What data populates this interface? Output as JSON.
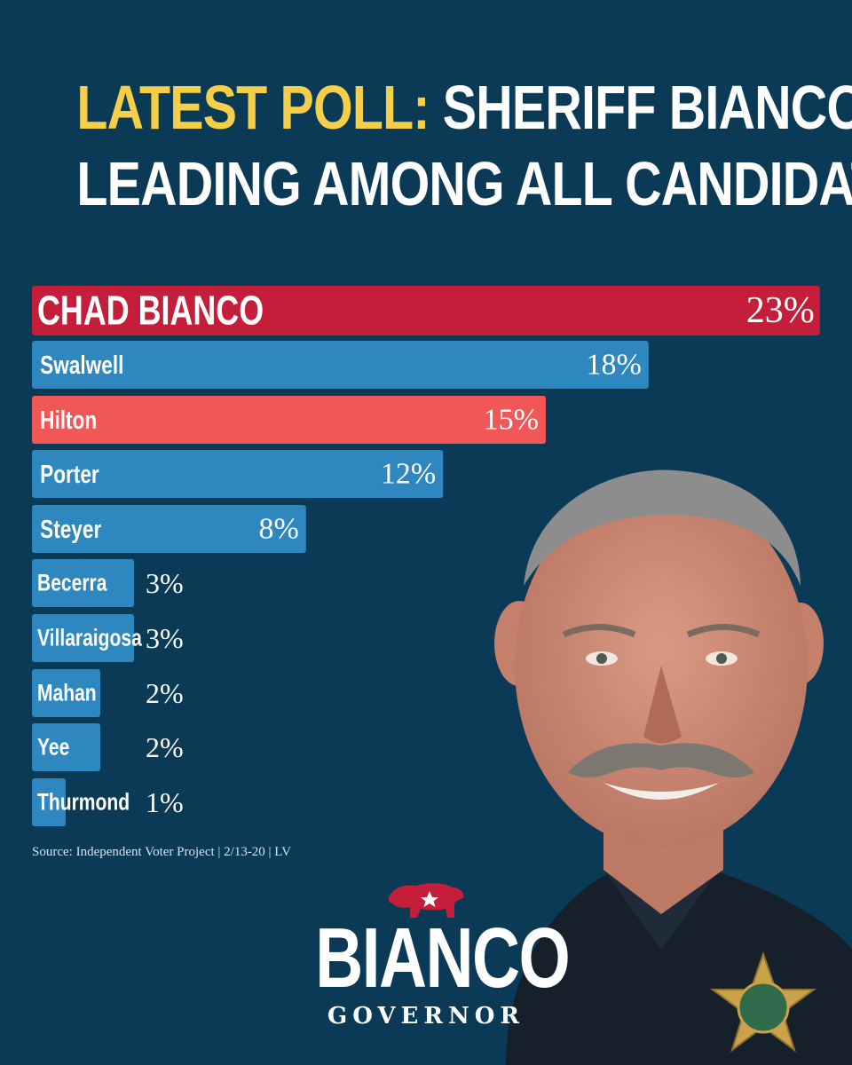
{
  "headline": {
    "accent": "LATEST POLL:",
    "line1_rest": " SHERIFF BIANCO",
    "line2": "LEADING AMONG ALL CANDIDATES"
  },
  "chart_data": {
    "type": "bar",
    "orientation": "horizontal",
    "categories": [
      "CHAD BIANCO",
      "Swalwell",
      "Hilton",
      "Porter",
      "Steyer",
      "Becerra",
      "Villaraigosa",
      "Mahan",
      "Yee",
      "Thurmond"
    ],
    "values": [
      23,
      18,
      15,
      12,
      8,
      3,
      3,
      2,
      2,
      1
    ],
    "value_labels": [
      "23%",
      "18%",
      "15%",
      "12%",
      "8%",
      "3%",
      "3%",
      "2%",
      "2%",
      "1%"
    ],
    "colors": [
      "#c41e3a",
      "#2e88bf",
      "#f25757",
      "#2e88bf",
      "#2e88bf",
      "#2e88bf",
      "#2e88bf",
      "#2e88bf",
      "#2e88bf",
      "#2e88bf"
    ],
    "highlight_label_color": "#f6cf4a"
  },
  "source": "Source: Independent Voter Project | 2/13-20 | LV",
  "logo": {
    "name": "BIANCO",
    "sub": "GOVERNOR"
  },
  "colors": {
    "background": "#0b3a57",
    "accent_yellow": "#f6cf4a",
    "red": "#c41e3a",
    "blue": "#2e88bf"
  }
}
